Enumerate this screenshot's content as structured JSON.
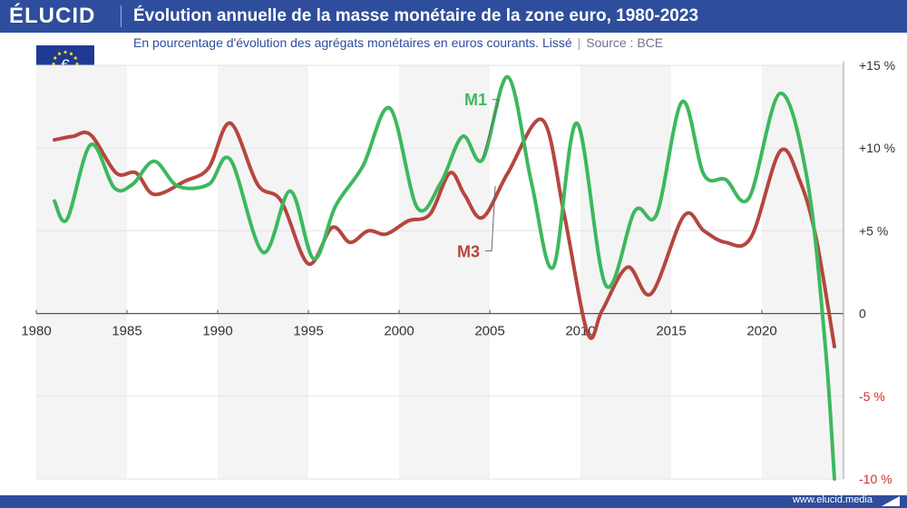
{
  "brand": "ÉLUCID",
  "footer_url": "www.elucid.media",
  "colors": {
    "m1": "#3db85e",
    "m3": "#b5463f",
    "header": "#2e4d9c",
    "negative": "#d0302a"
  },
  "icons": [
    "eu-flag-icon",
    "euro-icon",
    "elucid-logo-icon"
  ],
  "chart_data": {
    "type": "line",
    "title": "Évolution annuelle de la masse monétaire de la zone euro, 1980-2023",
    "subtitle": "En pourcentage d'évolution des agrégats monétaires en euros courants. Lissé",
    "source": "Source : BCE",
    "xlim": [
      1980,
      2024.5
    ],
    "ylim": [
      -10,
      15
    ],
    "xticks": [
      1980,
      1985,
      1990,
      1995,
      2000,
      2005,
      2010,
      2015,
      2020
    ],
    "yticks": [
      {
        "value": 15,
        "label": "+15 %"
      },
      {
        "value": 10,
        "label": "+10 %"
      },
      {
        "value": 5,
        "label": "+5 %"
      },
      {
        "value": 0,
        "label": "0"
      },
      {
        "value": -5,
        "label": "-5 %"
      },
      {
        "value": -10,
        "label": "-10 %"
      }
    ],
    "series": [
      {
        "name": "M1",
        "x": [
          1981,
          1981.7,
          1983,
          1984.3,
          1985.3,
          1986.5,
          1987.8,
          1989.5,
          1990.7,
          1992.5,
          1994,
          1995.3,
          1996.5,
          1998,
          1999.5,
          2001,
          2002.3,
          2003.5,
          2004.6,
          2006,
          2007.3,
          2008.5,
          2009.8,
          2011.4,
          2013,
          2014.2,
          2015.6,
          2016.8,
          2018,
          2019.3,
          2021,
          2022.5,
          2023.5,
          2024
        ],
        "y": [
          6.8,
          5.7,
          10.2,
          7.6,
          7.8,
          9.2,
          7.7,
          7.8,
          9.3,
          3.7,
          7.4,
          3.3,
          6.5,
          8.9,
          12.4,
          6.4,
          7.9,
          10.7,
          9.3,
          14.3,
          7.9,
          2.8,
          11.5,
          1.7,
          6.2,
          6.0,
          12.8,
          8.4,
          8.1,
          7.0,
          13.3,
          8.1,
          -2.0,
          -10.0
        ],
        "label_year": 2003.6,
        "label_value": 12.6,
        "leader_to": [
          2004.6,
          9.4
        ]
      },
      {
        "name": "M3",
        "x": [
          1981,
          1982,
          1983,
          1984.4,
          1985.5,
          1986.5,
          1988.2,
          1989.5,
          1990.7,
          1992.2,
          1993.5,
          1995,
          1996.3,
          1997.3,
          1998.3,
          1999.3,
          2000.5,
          2001.7,
          2002.8,
          2003.6,
          2004.6,
          2006,
          2007.9,
          2009.1,
          2010.4,
          2011.2,
          2012.6,
          2013.9,
          2015.7,
          2016.8,
          2018,
          2019.4,
          2021,
          2022.1,
          2023,
          2024
        ],
        "y": [
          10.5,
          10.7,
          10.8,
          8.5,
          8.5,
          7.2,
          8.0,
          8.8,
          11.5,
          7.8,
          6.8,
          3.0,
          5.2,
          4.3,
          5.0,
          4.8,
          5.6,
          6.0,
          8.5,
          7.2,
          5.8,
          8.5,
          11.7,
          6.0,
          -1.2,
          0.2,
          2.8,
          1.2,
          5.9,
          5.0,
          4.3,
          4.6,
          9.8,
          8.0,
          4.5,
          -2.0
        ],
        "label_year": 2003.2,
        "label_value": 3.4,
        "leader_to": [
          2005.3,
          7.7
        ]
      }
    ],
    "shaded_bands": [
      [
        1980,
        1985
      ],
      [
        1990,
        1995
      ],
      [
        2000,
        2005
      ],
      [
        2010,
        2015
      ],
      [
        2020,
        2024.5
      ]
    ]
  }
}
